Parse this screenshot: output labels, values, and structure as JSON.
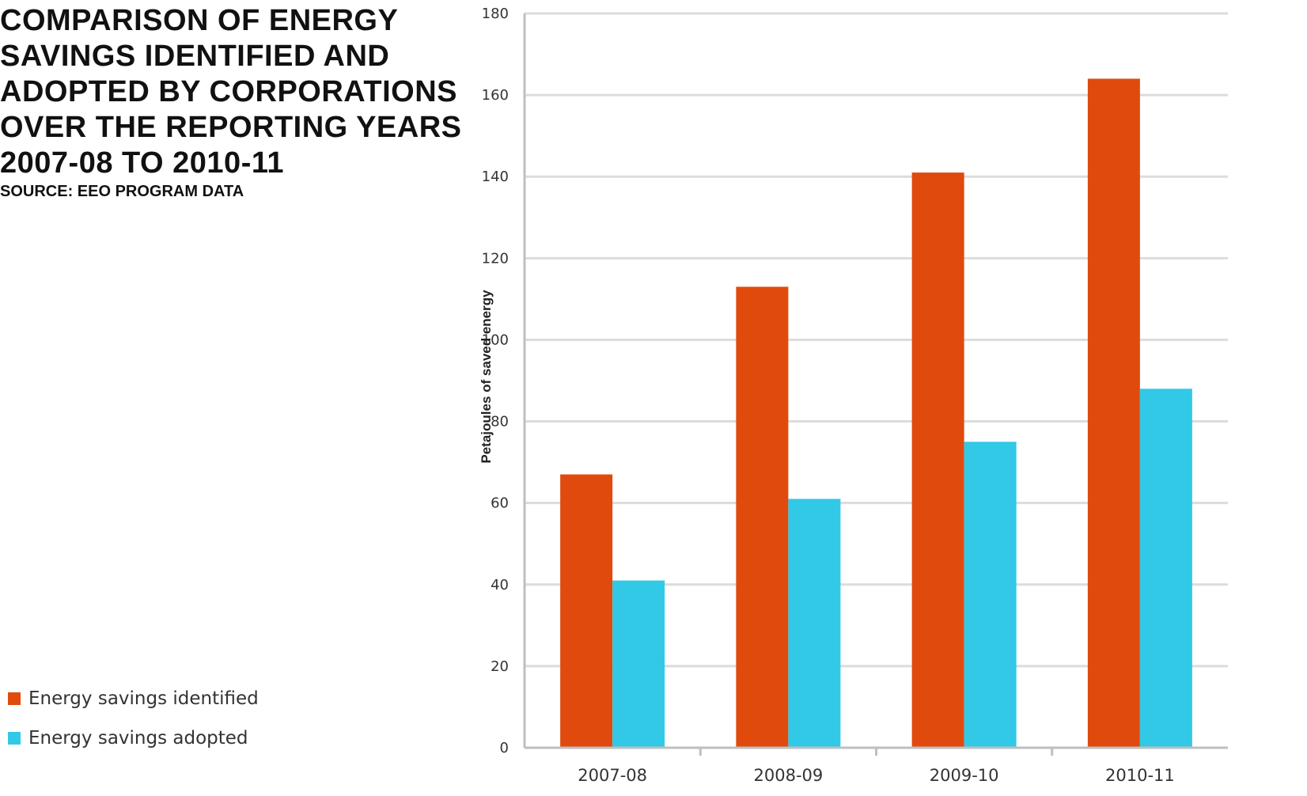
{
  "chart_data": {
    "type": "bar",
    "title": "COMPARISON OF ENERGY\nSAVINGS IDENTIFIED AND\nADOPTED BY CORPORATIONS\nOVER THE REPORTING YEARS\n2007-08 TO 2010-11",
    "subtitle": "SOURCE: EEO PROGRAM DATA",
    "xlabel": "",
    "ylabel": "Petajoules of saved energy",
    "categories": [
      "2007-08",
      "2008-09",
      "2009-10",
      "2010-11"
    ],
    "series": [
      {
        "name": "Energy savings identified",
        "color": "#E04A0C",
        "values": [
          67,
          113,
          141,
          164
        ]
      },
      {
        "name": "Energy savings adopted",
        "color": "#31C9E6",
        "values": [
          41,
          61,
          75,
          88
        ]
      }
    ],
    "ylim": [
      0,
      180
    ],
    "yticks": [
      0,
      20,
      40,
      60,
      80,
      100,
      120,
      140,
      160,
      180
    ],
    "grid": true,
    "legend_position": "bottom-left"
  }
}
